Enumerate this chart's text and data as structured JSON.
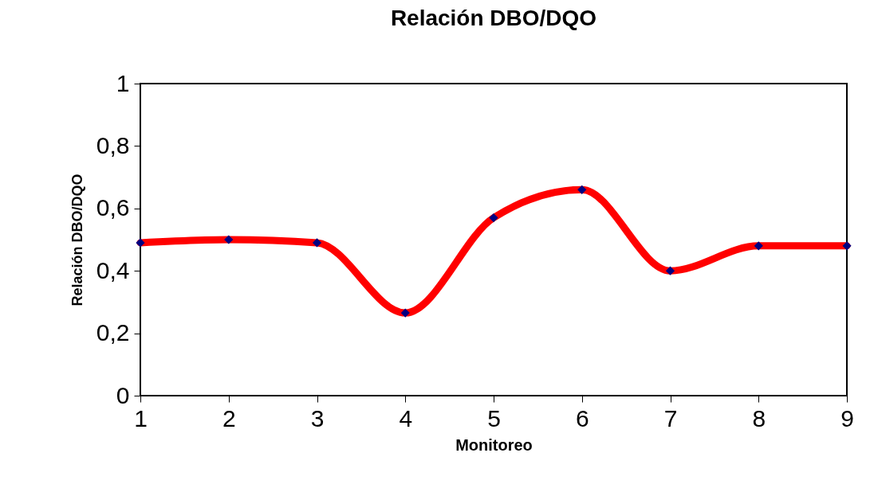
{
  "chart_data": {
    "type": "line",
    "title": "Relación DBO/DQO",
    "xlabel": "Monitoreo",
    "ylabel": "Relación DBO/DQO",
    "x": [
      1,
      2,
      3,
      4,
      5,
      6,
      7,
      8,
      9
    ],
    "series": [
      {
        "color": "#ff0000",
        "values": [
          0.49,
          0.5,
          0.49,
          0.265,
          0.57,
          0.66,
          0.4,
          0.48,
          0.48
        ]
      }
    ],
    "xlim": [
      1,
      9
    ],
    "xticks": [
      1,
      2,
      3,
      4,
      5,
      6,
      7,
      8,
      9
    ],
    "ylim": [
      0,
      1
    ],
    "yticks": [
      0,
      {
        "value": 0.2,
        "label": "0,2"
      },
      {
        "value": 0.4,
        "label": "0,4"
      },
      {
        "value": 0.6,
        "label": "0,6"
      },
      {
        "value": 0.8,
        "label": "0,8"
      },
      1
    ],
    "grid": false,
    "marker": "diamond",
    "line_style": "solid"
  }
}
